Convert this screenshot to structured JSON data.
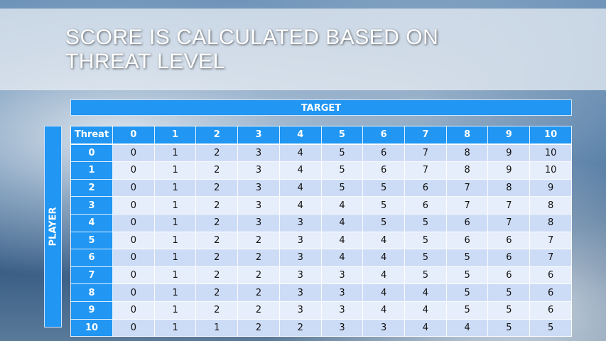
{
  "title": "SCORE IS CALCULATED BASED ON THREAT LEVEL",
  "title_lines": [
    "SCORE IS CALCULATED BASED ON",
    "THREAT LEVEL"
  ],
  "column_group_label": "TARGET",
  "row_group_label": "PLAYER",
  "table": {
    "corner_label": "Threat",
    "columns": [
      "0",
      "1",
      "2",
      "3",
      "4",
      "5",
      "6",
      "7",
      "8",
      "9",
      "10"
    ],
    "rows": [
      {
        "label": "0",
        "values": [
          "0",
          "1",
          "2",
          "3",
          "4",
          "5",
          "6",
          "7",
          "8",
          "9",
          "10"
        ]
      },
      {
        "label": "1",
        "values": [
          "0",
          "1",
          "2",
          "3",
          "4",
          "5",
          "6",
          "7",
          "8",
          "9",
          "10"
        ]
      },
      {
        "label": "2",
        "values": [
          "0",
          "1",
          "2",
          "3",
          "4",
          "5",
          "5",
          "6",
          "7",
          "8",
          "9"
        ]
      },
      {
        "label": "3",
        "values": [
          "0",
          "1",
          "2",
          "3",
          "4",
          "4",
          "5",
          "6",
          "7",
          "7",
          "8"
        ]
      },
      {
        "label": "4",
        "values": [
          "0",
          "1",
          "2",
          "3",
          "3",
          "4",
          "5",
          "5",
          "6",
          "7",
          "8"
        ]
      },
      {
        "label": "5",
        "values": [
          "0",
          "1",
          "2",
          "2",
          "3",
          "4",
          "4",
          "5",
          "6",
          "6",
          "7"
        ]
      },
      {
        "label": "6",
        "values": [
          "0",
          "1",
          "2",
          "2",
          "3",
          "4",
          "4",
          "5",
          "5",
          "6",
          "7"
        ]
      },
      {
        "label": "7",
        "values": [
          "0",
          "1",
          "2",
          "2",
          "3",
          "3",
          "4",
          "5",
          "5",
          "6",
          "6"
        ]
      },
      {
        "label": "8",
        "values": [
          "0",
          "1",
          "2",
          "2",
          "3",
          "3",
          "4",
          "4",
          "5",
          "5",
          "6"
        ]
      },
      {
        "label": "9",
        "values": [
          "0",
          "1",
          "2",
          "2",
          "3",
          "3",
          "4",
          "4",
          "5",
          "5",
          "6"
        ]
      },
      {
        "label": "10",
        "values": [
          "0",
          "1",
          "1",
          "2",
          "2",
          "3",
          "3",
          "4",
          "4",
          "5",
          "5"
        ]
      }
    ]
  },
  "colors": {
    "header": "#2196f3",
    "row_odd": "#cddcf6",
    "row_even": "#e7eefb"
  }
}
